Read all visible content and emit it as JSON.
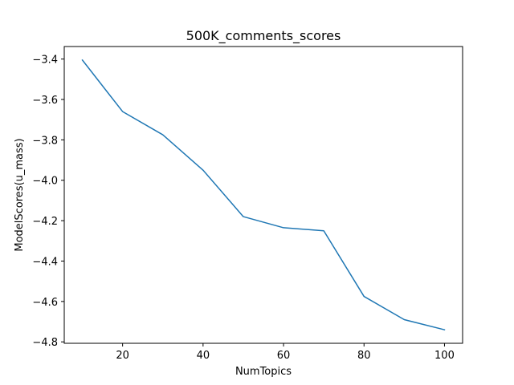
{
  "chart_data": {
    "type": "line",
    "title": "500K_comments_scores",
    "xlabel": "NumTopics",
    "ylabel": "ModelScores(u_mass)",
    "x": [
      10,
      20,
      30,
      40,
      50,
      60,
      70,
      80,
      90,
      100
    ],
    "series": [
      {
        "values": [
          -3.405,
          -3.66,
          -3.775,
          -3.95,
          -4.18,
          -4.235,
          -4.25,
          -4.575,
          -4.69,
          -4.74
        ]
      }
    ],
    "xlim": [
      5.5,
      104.5
    ],
    "ylim": [
      -4.807,
      -3.338
    ],
    "xticks": [
      20,
      40,
      60,
      80,
      100
    ],
    "xtick_labels": [
      "20",
      "40",
      "60",
      "80",
      "100"
    ],
    "yticks": [
      -3.4,
      -3.6,
      -3.8,
      -4.0,
      -4.2,
      -4.4,
      -4.6,
      -4.8
    ],
    "ytick_labels": [
      "−3.4",
      "−3.6",
      "−3.8",
      "−4.0",
      "−4.2",
      "−4.4",
      "−4.6",
      "−4.8"
    ],
    "grid": false,
    "legend": "none",
    "colors": {
      "line": "#1f77b4",
      "axes": "#000000",
      "background": "#ffffff"
    }
  }
}
